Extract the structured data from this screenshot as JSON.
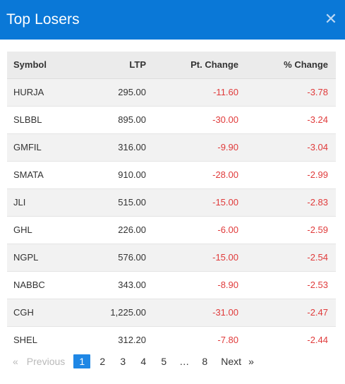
{
  "modal": {
    "title": "Top Losers",
    "close_glyph": "✕"
  },
  "table": {
    "columns": [
      "Symbol",
      "LTP",
      "Pt. Change",
      "% Change"
    ],
    "rows": [
      {
        "symbol": "HURJA",
        "ltp": "295.00",
        "pt_change": "-11.60",
        "pct_change": "-3.78"
      },
      {
        "symbol": "SLBBL",
        "ltp": "895.00",
        "pt_change": "-30.00",
        "pct_change": "-3.24"
      },
      {
        "symbol": "GMFIL",
        "ltp": "316.00",
        "pt_change": "-9.90",
        "pct_change": "-3.04"
      },
      {
        "symbol": "SMATA",
        "ltp": "910.00",
        "pt_change": "-28.00",
        "pct_change": "-2.99"
      },
      {
        "symbol": "JLI",
        "ltp": "515.00",
        "pt_change": "-15.00",
        "pct_change": "-2.83"
      },
      {
        "symbol": "GHL",
        "ltp": "226.00",
        "pt_change": "-6.00",
        "pct_change": "-2.59"
      },
      {
        "symbol": "NGPL",
        "ltp": "576.00",
        "pt_change": "-15.00",
        "pct_change": "-2.54"
      },
      {
        "symbol": "NABBC",
        "ltp": "343.00",
        "pt_change": "-8.90",
        "pct_change": "-2.53"
      },
      {
        "symbol": "CGH",
        "ltp": "1,225.00",
        "pt_change": "-31.00",
        "pct_change": "-2.47"
      },
      {
        "symbol": "SHEL",
        "ltp": "312.20",
        "pt_change": "-7.80",
        "pct_change": "-2.44"
      }
    ]
  },
  "pagination": {
    "prev_arrow": "«",
    "prev_label": "Previous",
    "pages": [
      "1",
      "2",
      "3",
      "4",
      "5"
    ],
    "ellipsis": "…",
    "last_page": "8",
    "next_label": "Next",
    "next_arrow": "»",
    "current_page": "1"
  },
  "colors": {
    "header_bg": "#0a78d7",
    "negative": "#e03a3a",
    "active_page": "#1f87e5"
  }
}
